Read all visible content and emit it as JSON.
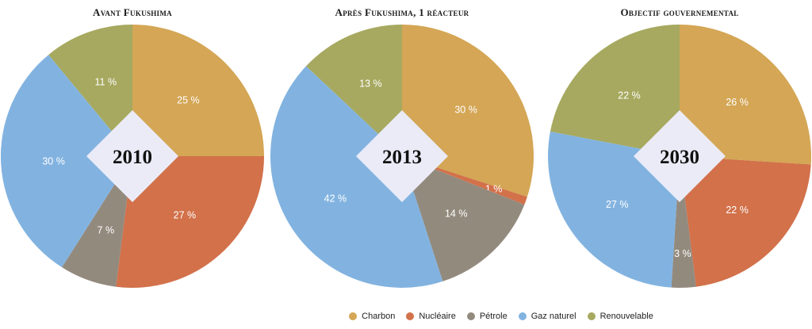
{
  "colors": {
    "Charbon": "#d4a655",
    "Nucléaire": "#d2714a",
    "Pétrole": "#938a7e",
    "Gaz naturel": "#82b3e0",
    "Renouvelable": "#a6a95f"
  },
  "chart_data": [
    {
      "type": "pie",
      "title": "Avant Fukushima",
      "year": "2010",
      "slices": [
        {
          "name": "Charbon",
          "value": 25,
          "label": "25 %"
        },
        {
          "name": "Nucléaire",
          "value": 27,
          "label": "27 %"
        },
        {
          "name": "Pétrole",
          "value": 7,
          "label": "7 %"
        },
        {
          "name": "Gaz naturel",
          "value": 30,
          "label": "30 %"
        },
        {
          "name": "Renouvelable",
          "value": 11,
          "label": "11 %"
        }
      ]
    },
    {
      "type": "pie",
      "title": "Après Fukushima, 1 réacteur",
      "year": "2013",
      "slices": [
        {
          "name": "Charbon",
          "value": 30,
          "label": "30 %"
        },
        {
          "name": "Nucléaire",
          "value": 1,
          "label": "1 %"
        },
        {
          "name": "Pétrole",
          "value": 14,
          "label": "14 %"
        },
        {
          "name": "Gaz naturel",
          "value": 42,
          "label": "42 %"
        },
        {
          "name": "Renouvelable",
          "value": 13,
          "label": "13 %"
        }
      ]
    },
    {
      "type": "pie",
      "title": "Objectif gouvernemental",
      "year": "2030",
      "slices": [
        {
          "name": "Charbon",
          "value": 26,
          "label": "26 %"
        },
        {
          "name": "Nucléaire",
          "value": 22,
          "label": "22 %"
        },
        {
          "name": "Pétrole",
          "value": 3,
          "label": "3 %"
        },
        {
          "name": "Gaz naturel",
          "value": 27,
          "label": "27 %"
        },
        {
          "name": "Renouvelable",
          "value": 22,
          "label": "22 %"
        }
      ]
    }
  ],
  "legend": {
    "position": "bottom",
    "items": [
      "Charbon",
      "Nucléaire",
      "Pétrole",
      "Gaz naturel",
      "Renouvelable"
    ]
  }
}
